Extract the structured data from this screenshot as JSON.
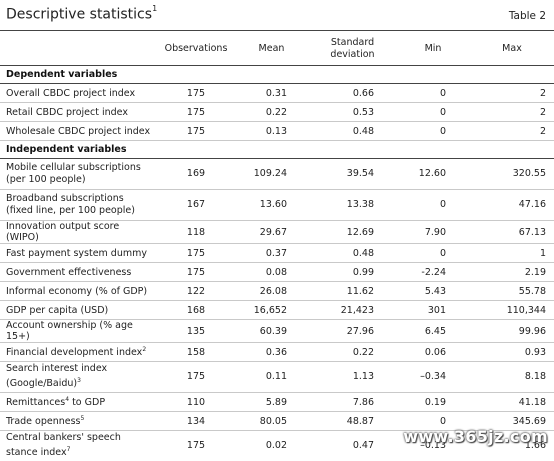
{
  "title": "Descriptive statistics",
  "title_sup": "1",
  "table_tag": "Table 2",
  "columns": [
    "",
    "Observations",
    "Mean",
    "Standard deviation",
    "Min",
    "Max"
  ],
  "sections": [
    {
      "heading": "Dependent variables",
      "rows": [
        {
          "label": "Overall CBDC project index",
          "values": [
            "175",
            "0.31",
            "0.66",
            "0",
            "2"
          ]
        },
        {
          "label": "Retail CBDC project index",
          "values": [
            "175",
            "0.22",
            "0.53",
            "0",
            "2"
          ]
        },
        {
          "label": "Wholesale CBDC project index",
          "values": [
            "175",
            "0.13",
            "0.48",
            "0",
            "2"
          ]
        }
      ]
    },
    {
      "heading": "Independent variables",
      "rows": [
        {
          "label": "Mobile cellular subscriptions (per 100 people)",
          "values": [
            "169",
            "109.24",
            "39.54",
            "12.60",
            "320.55"
          ]
        },
        {
          "label": "Broadband subscriptions (fixed line, per 100 people)",
          "values": [
            "167",
            "13.60",
            "13.38",
            "0",
            "47.16"
          ]
        },
        {
          "label": "Innovation output score (WIPO)",
          "values": [
            "118",
            "29.67",
            "12.69",
            "7.90",
            "67.13"
          ]
        },
        {
          "label": "Fast payment system dummy",
          "values": [
            "175",
            "0.37",
            "0.48",
            "0",
            "1"
          ]
        },
        {
          "label": "Government effectiveness",
          "values": [
            "175",
            "0.08",
            "0.99",
            "-2.24",
            "2.19"
          ]
        },
        {
          "label": "Informal economy (% of GDP)",
          "values": [
            "122",
            "26.08",
            "11.62",
            "5.43",
            "55.78"
          ]
        },
        {
          "label": "GDP per capita (USD)",
          "values": [
            "168",
            "16,652",
            "21,423",
            "301",
            "110,344"
          ]
        },
        {
          "label": "Account ownership (% age 15+)",
          "values": [
            "135",
            "60.39",
            "27.96",
            "6.45",
            "99.96"
          ]
        },
        {
          "label": "Financial development index",
          "sup": "2",
          "values": [
            "158",
            "0.36",
            "0.22",
            "0.06",
            "0.93"
          ]
        },
        {
          "label": "Search interest index (Google/Baidu)",
          "sup": "3",
          "values": [
            "175",
            "0.11",
            "1.13",
            "–0.34",
            "8.18"
          ]
        },
        {
          "label": "Remittances",
          "sup": "4",
          "label_after": " to GDP",
          "values": [
            "110",
            "5.89",
            "7.86",
            "0.19",
            "41.18"
          ]
        },
        {
          "label": "Trade openness",
          "sup": "5",
          "values": [
            "134",
            "80.05",
            "48.87",
            "0",
            "345.69"
          ]
        },
        {
          "label": "Central bankers' speech stance index",
          "sup": "7",
          "values": [
            "175",
            "0.02",
            "0.47",
            "–0.13",
            "1.66"
          ]
        }
      ]
    }
  ],
  "watermark": "www.365jz.com"
}
